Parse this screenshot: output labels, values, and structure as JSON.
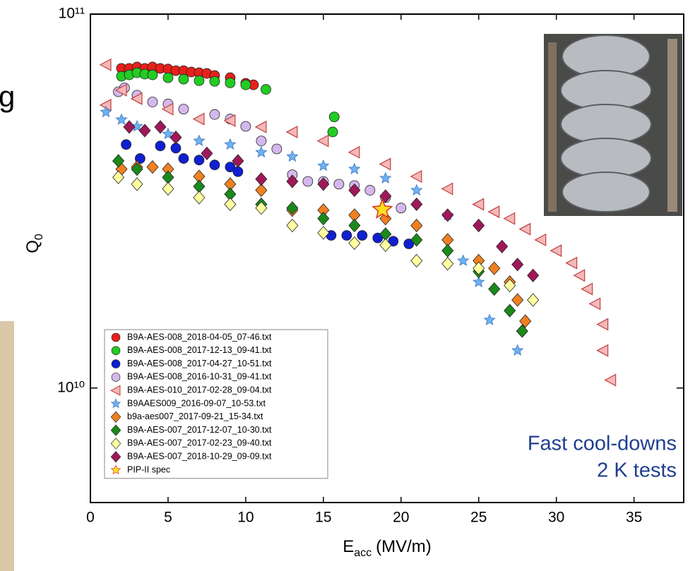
{
  "fragment_text": "g",
  "chart_data": {
    "type": "scatter",
    "log_y": true,
    "xlabel": "E",
    "xlabel_sub": "acc",
    "xlabel_rest": "(MV/m)",
    "ylabel": "Q",
    "ylabel_sub": "0",
    "annotations": [
      "Fast cool-downs",
      "2 K tests"
    ],
    "annotation_color": "#1f3f8f",
    "xlim": [
      0,
      38.2
    ],
    "ylim": [
      4940000000.0,
      100000000000.0
    ],
    "xticks": [
      0,
      5,
      10,
      15,
      20,
      25,
      30,
      35
    ],
    "yticks": [
      {
        "value": 10000000000.0,
        "label": "10¹⁰"
      },
      {
        "value": 100000000000.0,
        "label": "10¹¹"
      }
    ],
    "legend": "lower left",
    "series": [
      {
        "name": "B9A-AES-008_2018-04-05_07-46.txt",
        "marker": "circle",
        "color": "#e8201a",
        "x": [
          2,
          2.5,
          3,
          3.5,
          4,
          4.5,
          5,
          5.5,
          6,
          6.5,
          7,
          7.5,
          8,
          9,
          10,
          10.5
        ],
        "values": [
          71600000000.0,
          71600000000.0,
          72200000000.0,
          71600000000.0,
          72200000000.0,
          71600000000.0,
          71300000000.0,
          70600000000.0,
          70600000000.0,
          70000000000.0,
          69700000000.0,
          69400000000.0,
          68500000000.0,
          67600000000.0,
          65300000000.0,
          64700000000.0
        ]
      },
      {
        "name": "B9A-AES-008_2017-12-13_09-41.txt",
        "marker": "circle",
        "color": "#22cc22",
        "x": [
          2,
          2.5,
          3,
          3.5,
          4,
          5,
          6,
          7,
          8,
          9,
          10,
          11.3,
          15.7,
          15.6
        ],
        "values": [
          68200000000.0,
          68800000000.0,
          69700000000.0,
          69100000000.0,
          68800000000.0,
          67600000000.0,
          67000000000.0,
          66400000000.0,
          66100000000.0,
          65500000000.0,
          64700000000.0,
          62900000000.0,
          53100000000.0,
          48400000000.0
        ]
      },
      {
        "name": "B9A-AES-008_2017-04-27_10-51.txt",
        "marker": "circle",
        "color": "#1020d0",
        "x": [
          2.3,
          3.2,
          4.5,
          5.5,
          6,
          7,
          8,
          9,
          9.5,
          15.5,
          16.5,
          17.5,
          18.5,
          19.5,
          20.5
        ],
        "values": [
          44800000000.0,
          41100000000.0,
          44400000000.0,
          43800000000.0,
          41100000000.0,
          40700000000.0,
          39500000000.0,
          39000000000.0,
          37900000000.0,
          25600000000.0,
          25600000000.0,
          25600000000.0,
          25200000000.0,
          24700000000.0,
          24300000000.0
        ]
      },
      {
        "name": "B9A-AES-008_2016-10-31_09-41.txt",
        "marker": "circle",
        "color": "#d4b8ec",
        "x": [
          1.8,
          2.2,
          3,
          4,
          5,
          6,
          8,
          9,
          10,
          11,
          12,
          13,
          14,
          15,
          16,
          17,
          18,
          19,
          20
        ],
        "values": [
          62000000000.0,
          63500000000.0,
          60700000000.0,
          58200000000.0,
          57500000000.0,
          55700000000.0,
          53900000000.0,
          52400000000.0,
          50100000000.0,
          45800000000.0,
          43600000000.0,
          37200000000.0,
          35700000000.0,
          35700000000.0,
          35100000000.0,
          34800000000.0,
          33800000000.0,
          32300000000.0,
          30300000000.0
        ]
      },
      {
        "name": "B9A-AES-010_2017-02-28_09-04.txt",
        "marker": "triangle-left",
        "color": "#f4b8b8",
        "x": [
          1,
          1,
          2,
          3,
          5,
          7,
          9,
          11,
          13,
          15,
          17,
          19,
          21,
          23,
          25,
          26,
          27,
          28,
          29,
          30,
          31,
          31.5,
          32,
          32.5,
          33,
          33,
          33.5
        ],
        "values": [
          73200000000.0,
          57100000000.0,
          62600000000.0,
          59400000000.0,
          55700000000.0,
          52400000000.0,
          51900000000.0,
          49900000000.0,
          48400000000.0,
          45800000000.0,
          42700000000.0,
          39700000000.0,
          36800000000.0,
          34100000000.0,
          31000000000.0,
          29600000000.0,
          28400000000.0,
          26600000000.0,
          24900000000.0,
          23300000000.0,
          21600000000.0,
          20000000000.0,
          18400000000.0,
          16800000000.0,
          14800000000.0,
          12600000000.0,
          10500000000.0
        ]
      },
      {
        "name": "B9AAES009_2016-09-07_10-53.txt",
        "marker": "star",
        "color": "#70b0f0",
        "x": [
          1,
          2,
          3,
          5,
          7,
          9,
          11,
          13,
          15,
          17,
          19,
          21,
          23,
          24,
          25,
          25.7,
          27.5
        ],
        "values": [
          54700000000.0,
          52200000000.0,
          50100000000.0,
          47800000000.0,
          45800000000.0,
          44800000000.0,
          42700000000.0,
          41600000000.0,
          39300000000.0,
          38500000000.0,
          36400000000.0,
          33800000000.0,
          29000000000.0,
          21900000000.0,
          19200000000.0,
          15200000000.0,
          12600000000.0
        ]
      },
      {
        "name": "b9a-aes007_2017-09-21_15-34.txt",
        "marker": "diamond",
        "color": "#f08020",
        "x": [
          2,
          3,
          4,
          5,
          7,
          9,
          11,
          13,
          15,
          17,
          19,
          21,
          23,
          25,
          26,
          27,
          27.5,
          28
        ],
        "values": [
          38500000000.0,
          39000000000.0,
          39000000000.0,
          38500000000.0,
          36800000000.0,
          35100000000.0,
          33800000000.0,
          29900000000.0,
          29900000000.0,
          29000000000.0,
          28400000000.0,
          27200000000.0,
          24900000000.0,
          21900000000.0,
          20900000000.0,
          19200000000.0,
          17200000000.0,
          15100000000.0
        ]
      },
      {
        "name": "B9A-AES-007_2017-12-07_10-30.txt",
        "marker": "diamond",
        "color": "#1a8a1a",
        "x": [
          1.8,
          3,
          5,
          7,
          9,
          11,
          13,
          15,
          17,
          19,
          21,
          23,
          25,
          26,
          27,
          27.8
        ],
        "values": [
          40500000000.0,
          38500000000.0,
          36600000000.0,
          34600000000.0,
          33000000000.0,
          31000000000.0,
          30300000000.0,
          28400000000.0,
          27200000000.0,
          25800000000.0,
          24900000000.0,
          23300000000.0,
          20500000000.0,
          18400000000.0,
          16100000000.0,
          14200000000.0
        ]
      },
      {
        "name": "B9A-AES-007_2017-02-23_09-40.txt",
        "marker": "diamond",
        "color": "#ffffa0",
        "x": [
          1.8,
          3,
          5,
          7,
          9,
          11,
          13,
          15,
          17,
          19,
          21,
          23,
          25,
          27,
          28.5
        ],
        "values": [
          36600000000.0,
          35100000000.0,
          34100000000.0,
          32300000000.0,
          31000000000.0,
          30300000000.0,
          27200000000.0,
          26000000000.0,
          24400000000.0,
          24100000000.0,
          21900000000.0,
          21500000000.0,
          20900000000.0,
          18800000000.0,
          17200000000.0
        ]
      },
      {
        "name": "B9A-AES-007_2018-10-29_09-09.txt",
        "marker": "diamond",
        "color": "#a0185a",
        "x": [
          2.5,
          3.5,
          4.5,
          5.5,
          7.5,
          9.5,
          11,
          13,
          15,
          17,
          19,
          21,
          23,
          25,
          26.5,
          27.5,
          28.5
        ],
        "values": [
          49900000000.0,
          48800000000.0,
          49900000000.0,
          46800000000.0,
          42400000000.0,
          40500000000.0,
          36200000000.0,
          35700000000.0,
          35100000000.0,
          33800000000.0,
          32600000000.0,
          31000000000.0,
          29000000000.0,
          27200000000.0,
          23900000000.0,
          21400000000.0,
          20000000000.0
        ]
      },
      {
        "name": "PIP-II spec",
        "marker": "big-star",
        "color": "#ffe020",
        "x": [
          18.8
        ],
        "values": [
          30000000000.0
        ]
      }
    ]
  }
}
